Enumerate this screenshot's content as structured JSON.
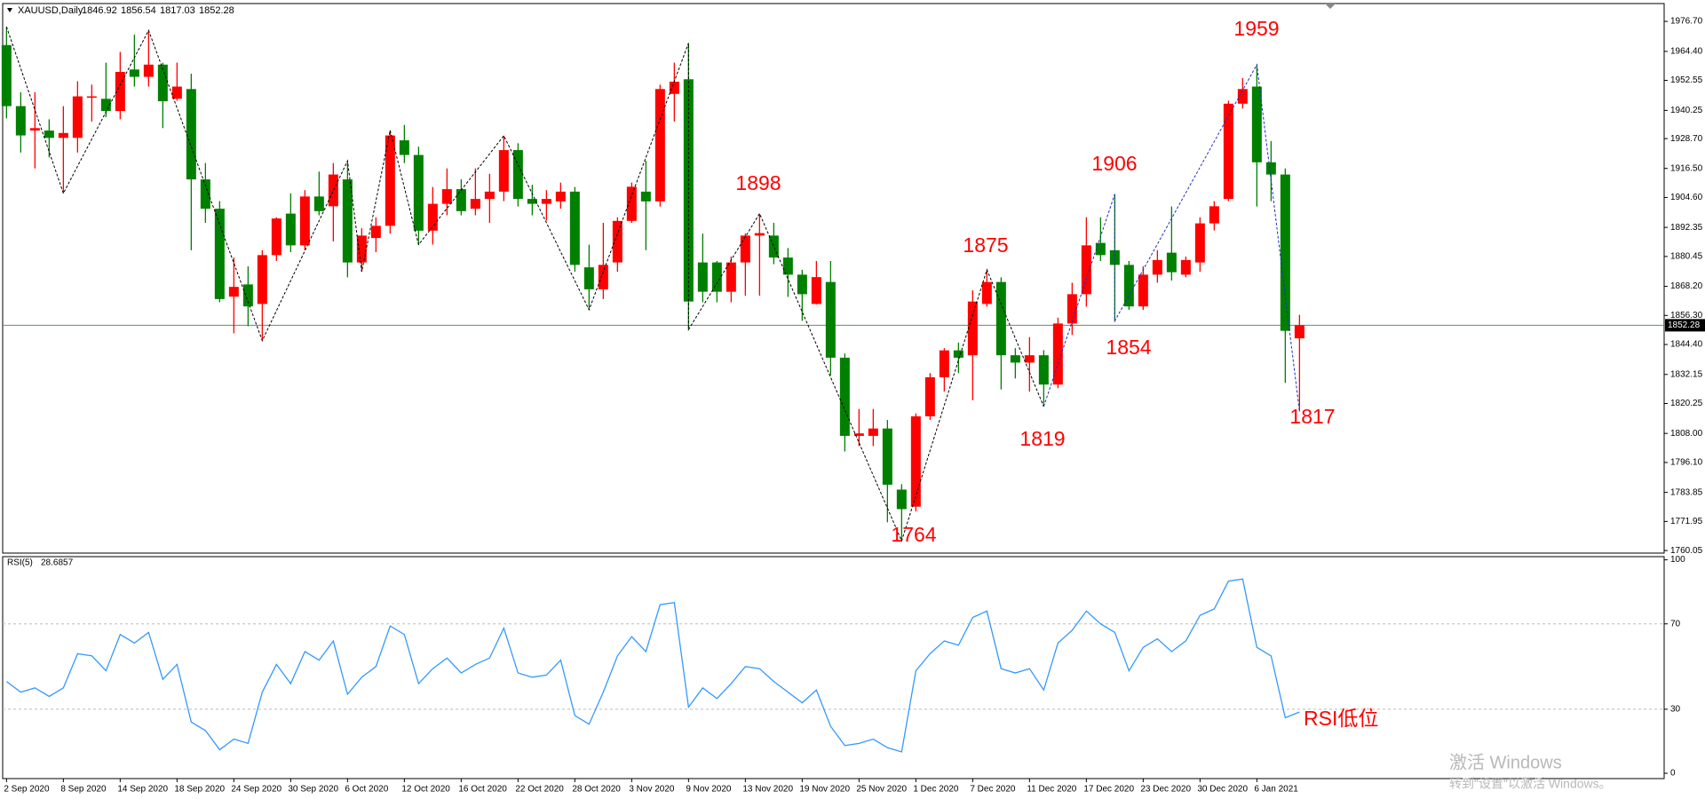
{
  "chart_data": [
    {
      "type": "candlestick",
      "title": "XAUUSD,Daily",
      "up_color": "#ff0000",
      "down_color": "#008000",
      "categories": [
        "2 Sep 2020",
        null,
        null,
        null,
        "8 Sep 2020",
        null,
        null,
        null,
        "14 Sep 2020",
        null,
        null,
        null,
        "18 Sep 2020",
        null,
        null,
        null,
        "24 Sep 2020",
        null,
        null,
        null,
        "30 Sep 2020",
        null,
        null,
        null,
        "6 Oct 2020",
        null,
        null,
        null,
        "12 Oct 2020",
        null,
        null,
        null,
        "16 Oct 2020",
        null,
        null,
        null,
        "22 Oct 2020",
        null,
        null,
        null,
        "28 Oct 2020",
        null,
        null,
        null,
        "3 Nov 2020",
        null,
        null,
        null,
        "9 Nov 2020",
        null,
        null,
        null,
        "13 Nov 2020",
        null,
        null,
        null,
        "19 Nov 2020",
        null,
        null,
        null,
        "25 Nov 2020",
        null,
        null,
        null,
        "1 Dec 2020",
        null,
        null,
        null,
        "7 Dec 2020",
        null,
        null,
        null,
        "11 Dec 2020",
        null,
        null,
        null,
        "17 Dec 2020",
        null,
        null,
        null,
        "23 Dec 2020",
        null,
        null,
        null,
        "30 Dec 2020",
        null,
        null,
        null,
        "6 Jan 2021",
        null,
        null,
        null
      ],
      "open": [
        1967,
        1942,
        1932,
        1932,
        1929,
        1929,
        1945.5,
        1945,
        1940,
        1957,
        1954,
        1959,
        1945,
        1949,
        1912,
        1900,
        1864,
        1869,
        1861,
        1881,
        1898,
        1885,
        1905,
        1901,
        1912,
        1878,
        1888,
        1893,
        1928,
        1922,
        1891,
        1902,
        1908,
        1900,
        1904,
        1907,
        1924,
        1904,
        1902,
        1903,
        1907,
        1876,
        1867,
        1878,
        1895,
        1907,
        1903,
        1947,
        1953,
        1878,
        1878,
        1866,
        1878,
        1889,
        1889,
        1880,
        1873,
        1861,
        1870,
        1839,
        1807,
        1807,
        1810,
        1785,
        1778,
        1815,
        1831,
        1842,
        1840,
        1861,
        1870,
        1840,
        1837,
        1840,
        1828,
        1853,
        1865,
        1886,
        1883,
        1877,
        1860,
        1873,
        1882,
        1873,
        1878,
        1894,
        1904,
        1943,
        1950,
        1919,
        1914,
        1846.92
      ],
      "high": [
        1974.5,
        1947.7,
        1947.7,
        1936.6,
        1942,
        1952.2,
        1950.8,
        1959.8,
        1964.2,
        1971.3,
        1973,
        1959.8,
        1959.8,
        1955.3,
        1918.7,
        1903.1,
        1880,
        1876.4,
        1883,
        1896.5,
        1906.3,
        1907.6,
        1915.2,
        1918.7,
        1919.6,
        1892,
        1896.5,
        1932.1,
        1934.3,
        1925.4,
        1908.9,
        1916.5,
        1912,
        1916.5,
        1914.3,
        1929.9,
        1926.8,
        1909.8,
        1907.6,
        1910.7,
        1908.9,
        1885.3,
        1894.2,
        1896.5,
        1910.7,
        1919.6,
        1950.8,
        1959.8,
        1967.8,
        1889.8,
        1878.6,
        1880.4,
        1889.8,
        1898,
        1894.2,
        1883.9,
        1875,
        1878.6,
        1878.6,
        1840.7,
        1818,
        1818,
        1813.5,
        1787.2,
        1816.2,
        1832.7,
        1842.9,
        1845.2,
        1866.6,
        1875,
        1871.9,
        1842.9,
        1847.4,
        1842.1,
        1855.4,
        1869.7,
        1896.5,
        1896.5,
        1906,
        1878.6,
        1876.4,
        1883,
        1900.9,
        1880.4,
        1896.5,
        1903.1,
        1944.2,
        1953.5,
        1959,
        1927.7,
        1916.5,
        1856.54
      ],
      "low": [
        1937,
        1923,
        1916.5,
        1921,
        1906.3,
        1923,
        1935.7,
        1937.5,
        1936.6,
        1950,
        1950,
        1933,
        1944.2,
        1883,
        1894.2,
        1861.7,
        1849,
        1851.9,
        1846,
        1878.6,
        1882.2,
        1883,
        1897.3,
        1886.6,
        1871.9,
        1874.2,
        1882.2,
        1889.8,
        1918.7,
        1885.3,
        1885.3,
        1897.3,
        1897.3,
        1897.3,
        1894.2,
        1903.1,
        1900.9,
        1897.3,
        1895.1,
        1900,
        1874.2,
        1858.6,
        1863,
        1874.2,
        1894.2,
        1883,
        1900.9,
        1935.7,
        1850.5,
        1861.7,
        1861.7,
        1861.7,
        1864.4,
        1864.4,
        1877.3,
        1863.9,
        1854.1,
        1860.8,
        1831.8,
        1800.6,
        1802.8,
        1802.8,
        1771.6,
        1764,
        1776.1,
        1813.5,
        1825.1,
        1832.7,
        1821.6,
        1859.9,
        1826,
        1830.5,
        1825.1,
        1819,
        1826.5,
        1848.3,
        1859.9,
        1878.6,
        1854,
        1858.6,
        1858.6,
        1869.7,
        1870.6,
        1871.9,
        1874.2,
        1891.1,
        1903.1,
        1941,
        1900.9,
        1903.1,
        1828.7,
        1817.03
      ],
      "close": [
        1942,
        1930,
        1933,
        1929,
        1931,
        1946,
        1946,
        1940,
        1956,
        1954,
        1959,
        1944,
        1950,
        1912,
        1900,
        1863,
        1868,
        1860,
        1881,
        1896,
        1885,
        1905,
        1899,
        1914,
        1878,
        1889,
        1893,
        1930,
        1922,
        1891,
        1902,
        1908,
        1899,
        1904,
        1907,
        1924,
        1904,
        1902,
        1904,
        1907,
        1877,
        1867,
        1877,
        1895,
        1909,
        1903,
        1949,
        1952,
        1862,
        1866,
        1866,
        1878,
        1889,
        1890,
        1880,
        1873,
        1865,
        1872,
        1839,
        1807,
        1808,
        1810,
        1787,
        1777,
        1815,
        1831,
        1842,
        1839,
        1862,
        1870,
        1840,
        1837,
        1840,
        1828,
        1853,
        1865,
        1885,
        1881,
        1877,
        1860,
        1873,
        1879,
        1874,
        1879,
        1894,
        1901,
        1943,
        1949,
        1919,
        1914,
        1850,
        1852.28
      ],
      "ylim": [
        1759,
        1984
      ],
      "yticks": [
        {
          "value": 1976.7,
          "label": "1976.70"
        },
        {
          "value": 1964.4,
          "label": "1964.40"
        },
        1952.55,
        1940.25,
        {
          "value": 1928.7,
          "label": "1928.70"
        },
        {
          "value": 1916.5,
          "label": "1916.50"
        },
        {
          "value": 1904.6,
          "label": "1904.60"
        },
        1892.35,
        1880.45,
        {
          "value": 1868.2,
          "label": "1868.20"
        },
        {
          "value": 1856.3,
          "label": "1856.30"
        },
        {
          "value": 1844.4,
          "label": "1844.40"
        },
        1832.15,
        1820.25,
        {
          "value": 1808,
          "label": "1808.00"
        },
        {
          "value": 1796.1,
          "label": "1796.10"
        },
        1783.85,
        1771.95,
        1760.05
      ],
      "annotations": [
        "1959",
        "1898",
        "1906",
        "1875",
        "1854",
        "1819",
        "1764",
        "1817"
      ],
      "annotation_color": "#ff0000"
    },
    {
      "type": "line",
      "title": "RSI(5)",
      "color": "#3399ff",
      "values": [
        43,
        38,
        40,
        36,
        40,
        56,
        55,
        48,
        65,
        61,
        66,
        44,
        51,
        24,
        20,
        11,
        16,
        14,
        38,
        51,
        42,
        57,
        53,
        62,
        37,
        45,
        50,
        69,
        65,
        42,
        49,
        54,
        47,
        51,
        54,
        68,
        47,
        45,
        46,
        53,
        27,
        23,
        38,
        55,
        64,
        57,
        79,
        80,
        31,
        40,
        35,
        42,
        50,
        49,
        43,
        38,
        33,
        39,
        22,
        13,
        14,
        16,
        12,
        10,
        48,
        56,
        62,
        60,
        73,
        76,
        49,
        47,
        49,
        39,
        61,
        67,
        76,
        70,
        66,
        48,
        59,
        63,
        57,
        62,
        74,
        77,
        90,
        91,
        59,
        55,
        26,
        28.6857
      ],
      "ylim": [
        -2.5,
        101.5
      ],
      "yticks": [
        0,
        30,
        70,
        100
      ],
      "annotations": [
        "RSI低位"
      ],
      "annotation_color": "#ff0000"
    }
  ],
  "watermark": {
    "line1": "激活 Windows",
    "line2": "转到\"设置\"以激活 Windows。"
  }
}
